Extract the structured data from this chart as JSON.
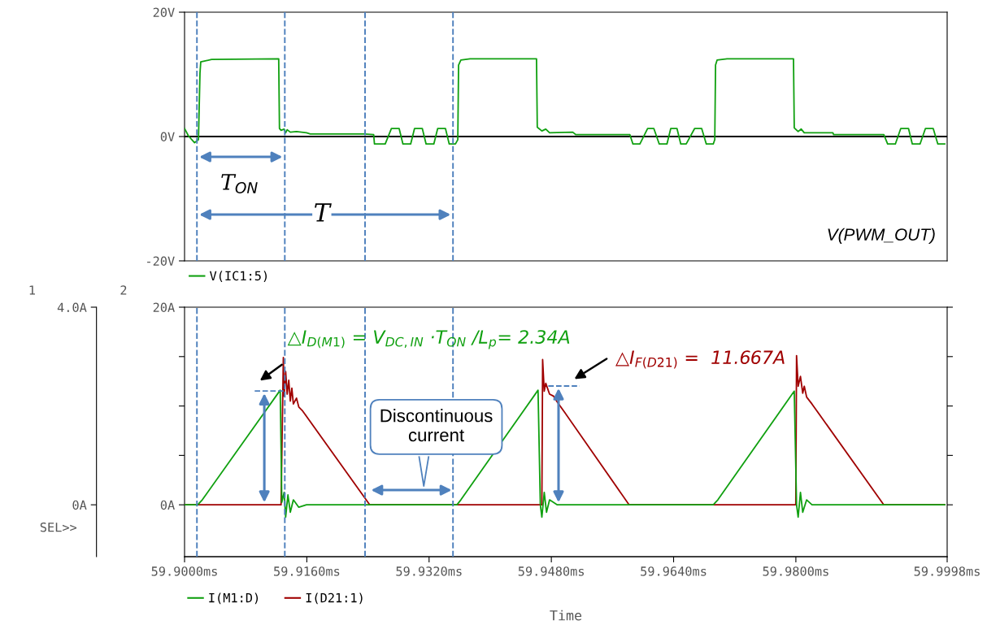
{
  "chart_data": [
    {
      "type": "line",
      "xlim": [
        59.9,
        59.9998
      ],
      "ylim": [
        -20,
        20
      ],
      "yticks": [
        {
          "value": -20,
          "label": "-20V"
        },
        {
          "value": 0,
          "label": "0V"
        },
        {
          "value": 20,
          "label": "20V"
        }
      ],
      "tick_labels": "y",
      "legend": "bottom left",
      "grid": false,
      "series": [
        {
          "name": "V(IC1:5)",
          "color": "#10a010",
          "x": [
            59.9,
            59.90051,
            59.90131,
            59.90182,
            59.90202,
            59.90212,
            59.90354,
            59.91232,
            59.91242,
            59.91263,
            59.91303,
            59.91323,
            59.91343,
            59.91384,
            59.91465,
            59.91596,
            59.91646,
            59.92353,
            59.92475,
            59.92485,
            59.92626,
            59.92707,
            59.92808,
            59.92858,
            59.92959,
            59.9301,
            59.93111,
            59.93161,
            59.93262,
            59.93313,
            59.93414,
            59.93464,
            59.93545,
            59.93576,
            59.93586,
            59.93616,
            59.93737,
            59.94606,
            59.94616,
            59.94676,
            59.94727,
            59.94777,
            59.9508,
            59.95121,
            59.95828,
            59.95868,
            59.95959,
            59.9606,
            59.96141,
            59.96212,
            59.96313,
            59.96363,
            59.96444,
            59.96494,
            59.96565,
            59.96676,
            59.96767,
            59.96828,
            59.96919,
            59.96939,
            59.96949,
            59.96969,
            59.971,
            59.97969,
            59.97979,
            59.9803,
            59.9807,
            59.9811,
            59.98484,
            59.98494,
            59.99151,
            59.99201,
            59.99302,
            59.99373,
            59.99474,
            59.99524,
            59.99625,
            59.99696,
            59.99797,
            59.99858,
            59.99948
          ],
          "values": [
            1.3,
            0.1,
            -1.0,
            -0.5,
            10.2,
            12.0,
            12.4,
            12.5,
            1.3,
            1.0,
            1.2,
            0.6,
            1.1,
            0.7,
            0.8,
            0.6,
            0.4,
            0.4,
            0.3,
            -1.2,
            -1.2,
            1.3,
            1.3,
            -1.2,
            -1.2,
            1.3,
            1.3,
            -1.2,
            -1.2,
            1.3,
            1.3,
            -1.2,
            -1.2,
            -0.5,
            11.5,
            12.3,
            12.5,
            12.5,
            1.5,
            0.9,
            1.2,
            0.6,
            0.7,
            0.3,
            0.3,
            -1.2,
            -1.2,
            1.3,
            1.3,
            -1.2,
            -1.2,
            1.3,
            1.3,
            -1.2,
            -1.2,
            1.3,
            1.3,
            -1.2,
            -1.2,
            -0.5,
            11.5,
            12.3,
            12.5,
            12.5,
            1.4,
            0.8,
            1.2,
            0.6,
            0.6,
            0.3,
            0.3,
            -1.2,
            -1.2,
            1.3,
            1.3,
            -1.2,
            -1.2,
            1.3,
            1.3,
            -1.2,
            -1.2
          ]
        }
      ],
      "ref_lines": [
        {
          "axis": "y",
          "value": 0,
          "color": "#000000",
          "line_style": "solid"
        },
        {
          "axis": "x",
          "value": 59.90162,
          "color": "#4f81bd",
          "line_style": "dashed"
        },
        {
          "axis": "x",
          "value": 59.91312,
          "color": "#4f81bd",
          "line_style": "dashed"
        },
        {
          "axis": "x",
          "value": 59.92362,
          "color": "#4f81bd",
          "line_style": "dashed"
        },
        {
          "axis": "x",
          "value": 59.93513,
          "color": "#4f81bd",
          "line_style": "dashed"
        }
      ],
      "annotations": [
        "T$_{ON}$",
        "T",
        "V(PWM_OUT)"
      ]
    },
    {
      "type": "line",
      "xlim": [
        59.9,
        59.9998
      ],
      "ylim": [
        -1.05,
        4.0
      ],
      "y2lim": [
        -5.25,
        20
      ],
      "xticks": [
        {
          "value": 59.9,
          "label": "59.9000ms"
        },
        {
          "value": 59.916,
          "label": "59.9160ms"
        },
        {
          "value": 59.932,
          "label": "59.9320ms"
        },
        {
          "value": 59.948,
          "label": "59.9480ms"
        },
        {
          "value": 59.964,
          "label": "59.9640ms"
        },
        {
          "value": 59.98,
          "label": "59.9800ms"
        },
        {
          "value": 59.9998,
          "label": "59.9998ms"
        }
      ],
      "yticks": [
        {
          "value": 0,
          "label": "0A"
        },
        {
          "value": 4.0,
          "label": "4.0A"
        }
      ],
      "y2ticks": [
        {
          "value": 0,
          "label": "0A"
        },
        {
          "value": 5,
          "label": null
        },
        {
          "value": 10,
          "label": null
        },
        {
          "value": 15,
          "label": null
        },
        {
          "value": 20,
          "label": "20A"
        }
      ],
      "xlabel": "Time",
      "ylabel": "1",
      "y2label": "2",
      "legend": "bottom",
      "grid": false,
      "series": [
        {
          "name": "I(M1:D)",
          "color": "#10a010",
          "x": [
            59.9,
            59.90172,
            59.90232,
            59.91252,
            59.91273,
            59.91303,
            59.91323,
            59.91353,
            59.91384,
            59.91424,
            59.91495,
            59.91596,
            59.92353,
            59.93565,
            59.93616,
            59.94626,
            59.94656,
            59.94676,
            59.94707,
            59.94737,
            59.94777,
            59.94878,
            59.96919,
            59.96979,
            59.97979,
            59.98009,
            59.9803,
            59.9806,
            59.9809,
            59.98141,
            59.98211,
            59.99948
          ],
          "values": [
            0,
            0,
            0.1,
            2.32,
            0.05,
            0.25,
            -0.25,
            0.2,
            -0.15,
            0.1,
            -0.05,
            0,
            0,
            0,
            0.1,
            2.32,
            0,
            -0.25,
            0.25,
            -0.15,
            0.1,
            0,
            0,
            0.1,
            2.3,
            0,
            -0.25,
            0.25,
            -0.15,
            0.1,
            0,
            0
          ]
        },
        {
          "name": "I(D21:1)",
          "color": "#a00000",
          "axis": "y2",
          "x": [
            59.9,
            59.91263,
            59.91293,
            59.91303,
            59.91323,
            59.91343,
            59.91364,
            59.91384,
            59.91404,
            59.91424,
            59.91465,
            59.91495,
            59.91545,
            59.92424,
            59.94676,
            59.94686,
            59.94707,
            59.94727,
            59.94777,
            59.94828,
            59.94878,
            59.94979,
            59.95818,
            59.97999,
            59.98009,
            59.9803,
            59.9806,
            59.9809,
            59.9811,
            59.98141,
            59.98211,
            59.99151,
            59.99948
          ],
          "values": [
            0,
            0,
            14.9,
            11.0,
            13.5,
            11.2,
            12.6,
            10.5,
            11.8,
            10.2,
            10.8,
            9.9,
            9.5,
            0,
            0,
            14.7,
            11.5,
            12.3,
            11.2,
            11.0,
            10.4,
            9.3,
            0,
            0,
            15.1,
            12.0,
            13.0,
            11.3,
            12.0,
            10.9,
            10.2,
            0,
            0
          ]
        }
      ],
      "ref_lines": [
        {
          "axis": "x",
          "value": 59.90162,
          "color": "#4f81bd",
          "line_style": "dashed"
        },
        {
          "axis": "x",
          "value": 59.91312,
          "color": "#4f81bd",
          "line_style": "dashed"
        },
        {
          "axis": "x",
          "value": 59.92362,
          "color": "#4f81bd",
          "line_style": "dashed"
        },
        {
          "axis": "x",
          "value": 59.93513,
          "color": "#4f81bd",
          "line_style": "dashed"
        }
      ],
      "annotations": [
        "△I$_{D(M1)}$ = V$_{DC,IN}$ ·T$_{ON}$ /L$_{p}$= 2.34A",
        "△I$_{F(D21)}$ =  11.667A",
        "Discontinuous\ncurrent",
        "SEL>>"
      ]
    }
  ]
}
